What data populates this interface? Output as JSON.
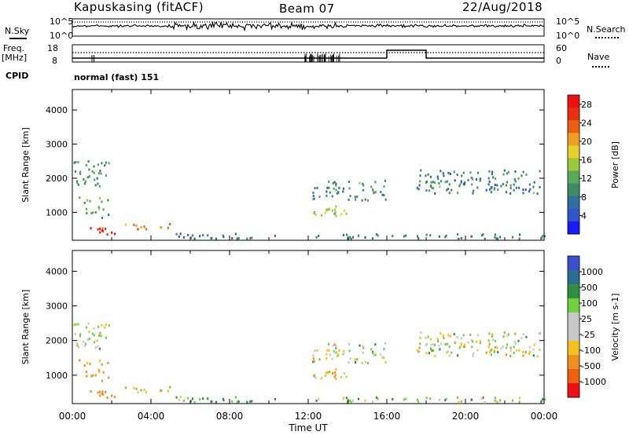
{
  "header": {
    "station": "Kapuskasing (fitACF)",
    "beam": "Beam 07",
    "date": "22/Aug/2018"
  },
  "top_panel": {
    "left_label": "N.Sky",
    "right_label": "N.Search",
    "left_ticks": [
      "10^5",
      "10^0"
    ],
    "right_ticks": [
      "10^5",
      "10^0"
    ]
  },
  "freq_panel": {
    "left_label_1": "Freq.",
    "left_label_2": "[MHz]",
    "left_ticks": [
      "18",
      "8"
    ],
    "right_label": "Nave",
    "right_ticks": [
      "60",
      "0"
    ],
    "cpid_label": "CPID",
    "cpid_text": "normal (fast) 151"
  },
  "x_axis": {
    "label": "Time UT",
    "ticks": [
      "00:00",
      "04:00",
      "08:00",
      "12:00",
      "16:00",
      "20:00",
      "00:00"
    ]
  },
  "colors": {
    "power": [
      "#1a1aff",
      "#3355cc",
      "#2f6fa0",
      "#3d8b63",
      "#5aa85a",
      "#9ac93a",
      "#e8d02a",
      "#f0a020",
      "#e86010",
      "#e83010",
      "#ee1010"
    ],
    "velocity": [
      "#3a4fd0",
      "#2a6f8f",
      "#2f8f3f",
      "#6fd040",
      "#c8c8c8",
      "#c8c8c8",
      "#f5c020",
      "#f09020",
      "#ee6010",
      "#ee1010"
    ]
  },
  "chart_data": [
    {
      "type": "heatmap",
      "panel": "power",
      "xlabel": "",
      "ylabel": "Slant Range [km]",
      "xlim": [
        0,
        24
      ],
      "ylim": [
        180,
        4600
      ],
      "yticks": [
        1000,
        2000,
        3000,
        4000
      ],
      "colorbar_label": "Power [dB]",
      "colorbar_ticks": [
        "28",
        "24",
        "20",
        "16",
        "12",
        "8",
        "4"
      ],
      "colorbar_range": [
        0,
        30
      ],
      "features": [
        {
          "t": [
            0.0,
            1.9
          ],
          "r": [
            1700,
            2500
          ],
          "value": 10
        },
        {
          "t": [
            0.3,
            1.9
          ],
          "r": [
            800,
            1400
          ],
          "value": 12
        },
        {
          "t": [
            0.8,
            2.4
          ],
          "r": [
            250,
            500
          ],
          "value": 28
        },
        {
          "t": [
            2.6,
            5.2
          ],
          "r": [
            450,
            650
          ],
          "value": 22
        },
        {
          "t": [
            5.2,
            11.5
          ],
          "r": [
            180,
            350
          ],
          "value": 6
        },
        {
          "t": [
            12.2,
            15.9
          ],
          "r": [
            1300,
            1900
          ],
          "value": 10
        },
        {
          "t": [
            12.1,
            14.3
          ],
          "r": [
            850,
            1150
          ],
          "value": 16
        },
        {
          "t": [
            17.5,
            23.9
          ],
          "r": [
            1500,
            2200
          ],
          "value": 9
        },
        {
          "t": [
            11.9,
            24.0
          ],
          "r": [
            180,
            320
          ],
          "value": 8
        }
      ]
    },
    {
      "type": "heatmap",
      "panel": "velocity",
      "xlabel": "Time UT",
      "ylabel": "Slant Range [km]",
      "xlim": [
        0,
        24
      ],
      "ylim": [
        180,
        4600
      ],
      "yticks": [
        1000,
        2000,
        3000,
        4000
      ],
      "colorbar_label": "Velocity [m s-1]",
      "colorbar_ticks": [
        "1000",
        "500",
        "100",
        "25",
        "-25",
        "-100",
        "-500",
        "-1000"
      ],
      "colorbar_range": [
        -1200,
        1200
      ],
      "features": [
        {
          "t": [
            0.0,
            1.9
          ],
          "r": [
            1700,
            2500
          ],
          "value": 0
        },
        {
          "t": [
            0.3,
            1.9
          ],
          "r": [
            800,
            1400
          ],
          "value": -150
        },
        {
          "t": [
            0.8,
            2.4
          ],
          "r": [
            250,
            500
          ],
          "value": -300
        },
        {
          "t": [
            2.6,
            5.2
          ],
          "r": [
            450,
            650
          ],
          "value": -120
        },
        {
          "t": [
            5.2,
            11.5
          ],
          "r": [
            180,
            350
          ],
          "value": 80
        },
        {
          "t": [
            12.2,
            15.9
          ],
          "r": [
            1300,
            1900
          ],
          "value": 0
        },
        {
          "t": [
            12.1,
            14.3
          ],
          "r": [
            850,
            1150
          ],
          "value": -80
        },
        {
          "t": [
            17.5,
            23.9
          ],
          "r": [
            1500,
            2200
          ],
          "value": 0
        },
        {
          "t": [
            11.9,
            24.0
          ],
          "r": [
            180,
            320
          ],
          "value": 60
        }
      ]
    }
  ]
}
